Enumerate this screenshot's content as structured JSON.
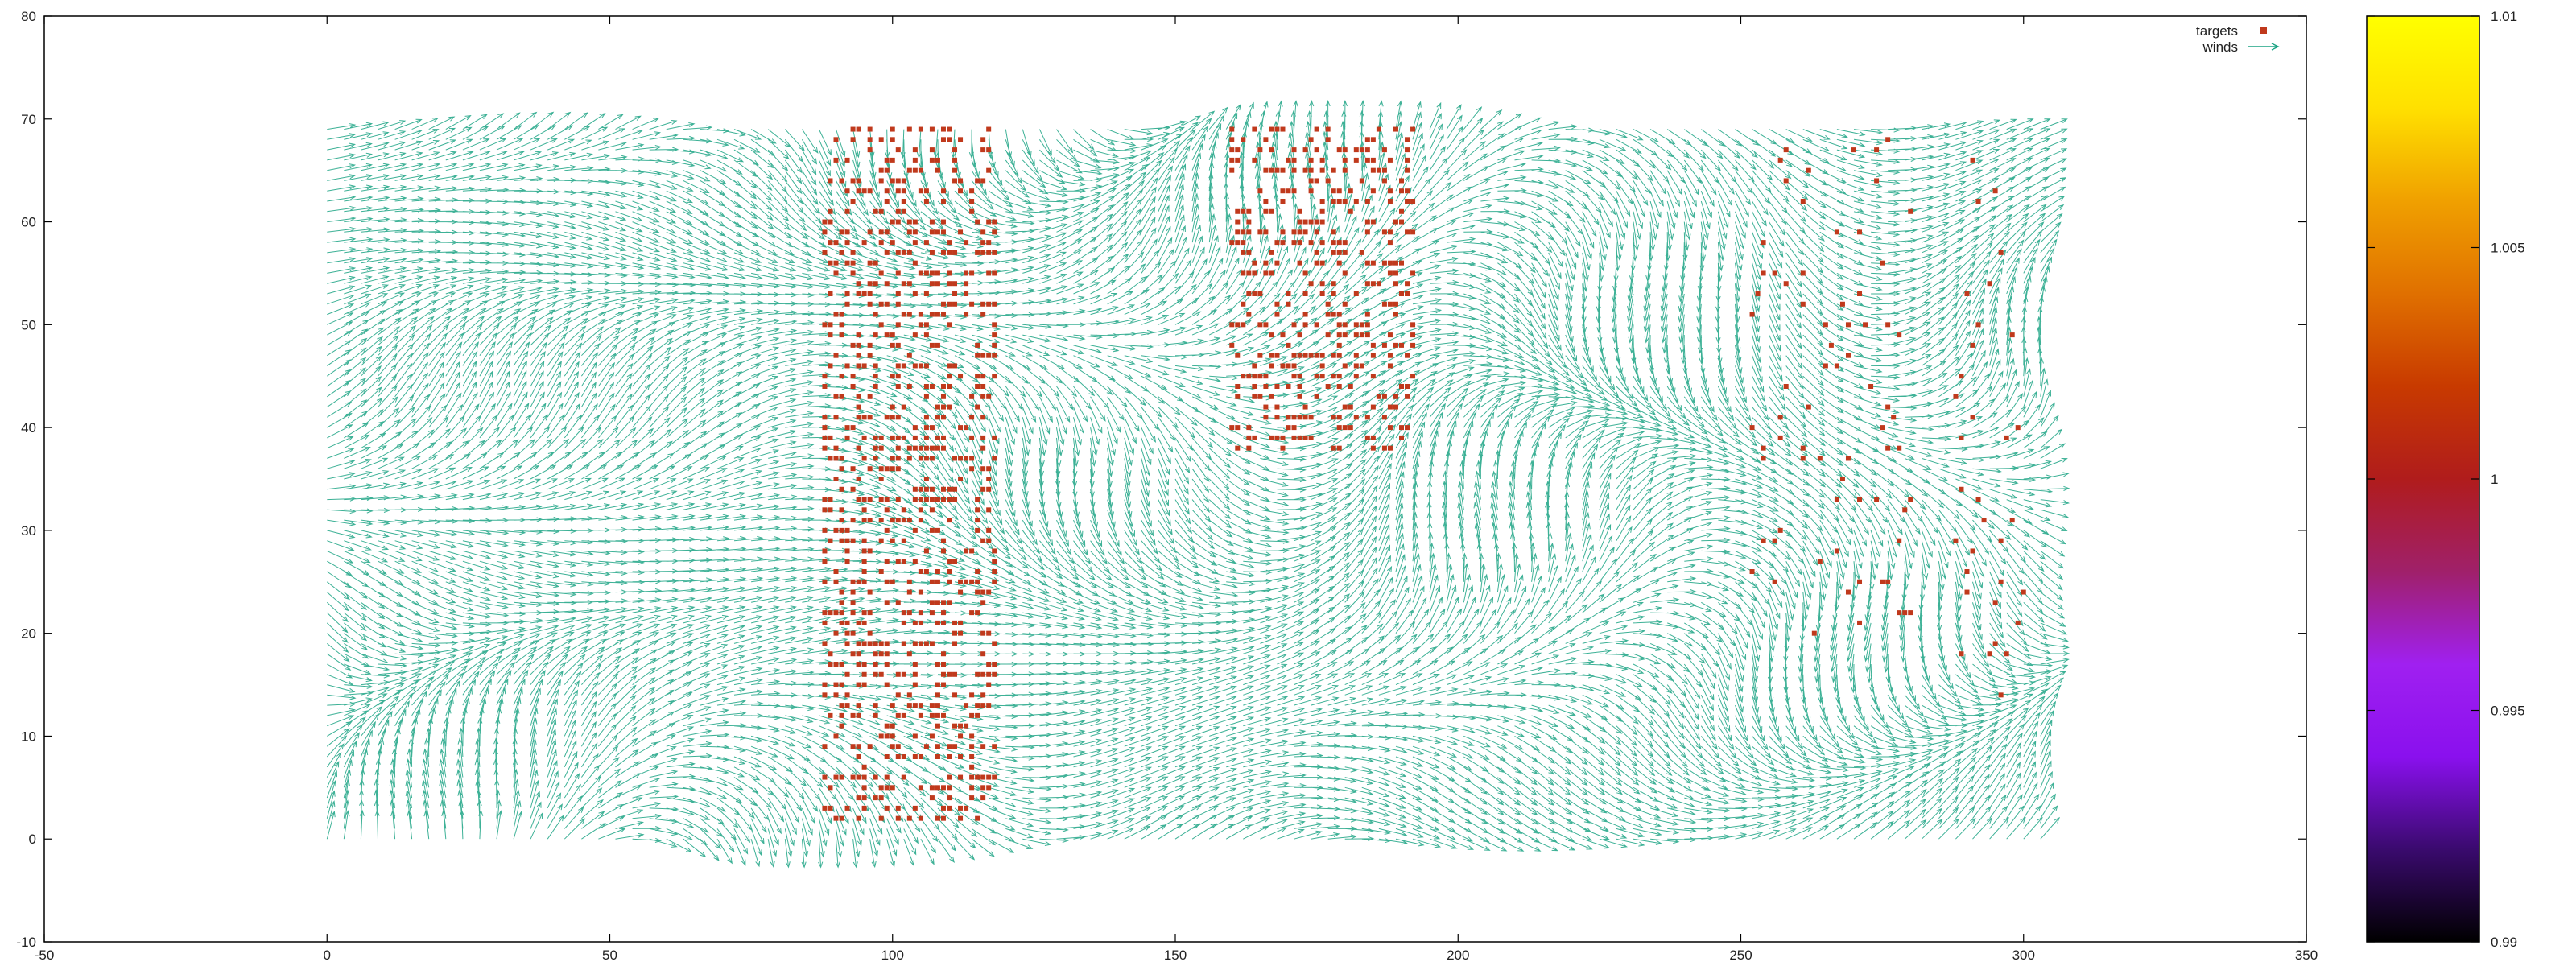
{
  "chart_data": {
    "type": "vector-field-scatter",
    "title": "",
    "xlabel": "",
    "ylabel": "",
    "xlim": [
      -50,
      350
    ],
    "ylim": [
      -10,
      80
    ],
    "xticks": [
      "-50",
      "0",
      "50",
      "100",
      "150",
      "200",
      "250",
      "300",
      "350"
    ],
    "yticks": [
      "-10",
      "0",
      "10",
      "20",
      "30",
      "40",
      "50",
      "60",
      "70",
      "80"
    ],
    "grid": false,
    "legend": {
      "placement": "top-right",
      "entries": [
        {
          "label": "targets",
          "marker": "square",
          "color": "#c0391c"
        },
        {
          "label": "winds",
          "marker": "arrow",
          "color": "#1ba384"
        }
      ]
    },
    "winds": {
      "x_range": [
        0,
        303
      ],
      "y_range": [
        0,
        69
      ],
      "x_step": 3,
      "y_step": 1,
      "arrow_length": 5,
      "color": "#1ba384"
    },
    "targets": {
      "color": "#c0391c",
      "columns": [
        {
          "x": [
            88,
            118
          ],
          "y": [
            2,
            69
          ]
        },
        {
          "x": [
            160,
            192
          ],
          "y": [
            38,
            69
          ]
        },
        {
          "x": [
            252,
            280
          ],
          "y": [
            20,
            68
          ]
        },
        {
          "x": [
            288,
            300
          ],
          "y": [
            14,
            68
          ]
        }
      ]
    },
    "colorbar": {
      "range": [
        0.99,
        1.01
      ],
      "ticks": [
        "0.99",
        "0.995",
        "1",
        "1.005",
        "1.01"
      ],
      "palette": [
        "#000000",
        "#3a0a6e",
        "#8a10ee",
        "#a020f0",
        "#a0206a",
        "#b01c1c",
        "#c83a00",
        "#e07000",
        "#f0a000",
        "#ffe000",
        "#ffff00"
      ]
    }
  }
}
